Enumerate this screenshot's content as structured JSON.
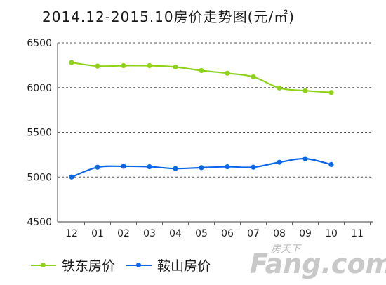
{
  "chart_data": {
    "type": "line",
    "title": "2014.12-2015.10房价走势图(元/㎡)",
    "categories": [
      "12",
      "01",
      "02",
      "03",
      "04",
      "05",
      "06",
      "07",
      "08",
      "09",
      "10",
      "11"
    ],
    "ylim": [
      4500,
      6500
    ],
    "yticks": [
      4500,
      5000,
      5500,
      6000,
      6500
    ],
    "grid": true,
    "legend_position": "bottom-left",
    "series": [
      {
        "name": "铁东房价",
        "color": "#8fd21a",
        "values": [
          6280,
          6240,
          6245,
          6245,
          6230,
          6190,
          6160,
          6120,
          5995,
          5965,
          5945,
          null
        ]
      },
      {
        "name": "鞍山房价",
        "color": "#0b67e8",
        "values": [
          5000,
          5110,
          5120,
          5115,
          5095,
          5105,
          5115,
          5110,
          5165,
          5205,
          5140,
          null
        ]
      }
    ]
  },
  "watermark": {
    "cn": "房天下",
    "en": "Fang.com"
  }
}
